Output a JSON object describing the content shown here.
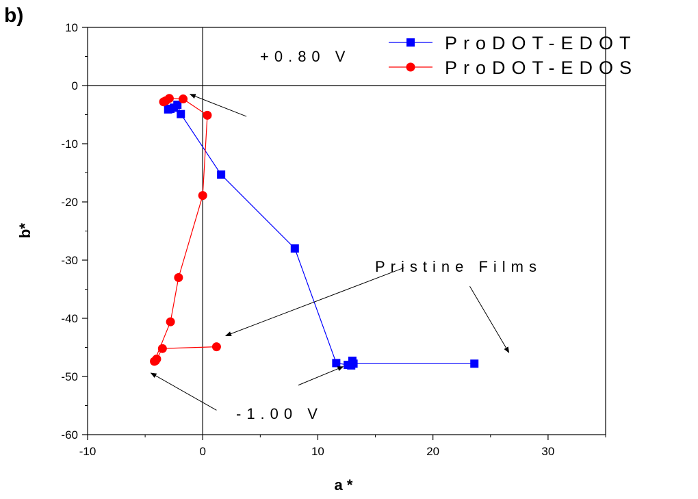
{
  "panel_label": "b)",
  "chart_data": {
    "type": "scatter",
    "xlabel": "a *",
    "ylabel": "b*",
    "xlim": [
      -10,
      35
    ],
    "ylim": [
      -60,
      10
    ],
    "x_ticks": [
      -10,
      0,
      10,
      20,
      30
    ],
    "y_ticks": [
      10,
      0,
      -10,
      -20,
      -30,
      -40,
      -50,
      -60
    ],
    "grid": false,
    "legend_position": "top-right",
    "zero_lines": true,
    "series": [
      {
        "name": "ProDOT-EDOT",
        "color": "#0000ff",
        "marker": "square",
        "x": [
          23.6,
          13.1,
          12.9,
          13.0,
          12.6,
          11.6,
          8.0,
          1.6,
          -1.9,
          -2.2,
          -2.5,
          -2.8,
          -3.0
        ],
        "y": [
          -47.8,
          -47.8,
          -48.1,
          -47.3,
          -48.0,
          -47.7,
          -28.0,
          -15.3,
          -4.9,
          -3.3,
          -3.8,
          -4.0,
          -4.1
        ]
      },
      {
        "name": "ProDOT-EDOS",
        "color": "#ff0000",
        "marker": "circle",
        "x": [
          1.2,
          -3.5,
          -4.0,
          -4.1,
          -4.2,
          -2.8,
          -2.1,
          0.0,
          0.4,
          -1.7,
          -2.9,
          -3.2,
          -3.4
        ],
        "y": [
          -44.9,
          -45.2,
          -47.0,
          -47.3,
          -47.4,
          -40.6,
          -33.0,
          -18.9,
          -5.1,
          -2.3,
          -2.2,
          -2.6,
          -2.8
        ]
      }
    ],
    "annotations": [
      {
        "text": "+0.80 V",
        "arrows": [
          {
            "from": [
              3.8,
              -5.3
            ],
            "to": [
              -1.1,
              -1.5
            ]
          }
        ]
      },
      {
        "text": "Pristine Films",
        "arrows": [
          {
            "from": [
              17.5,
              -31.3
            ],
            "to": [
              2.0,
              -43.0
            ]
          },
          {
            "from": [
              23.2,
              -34.5
            ],
            "to": [
              26.6,
              -45.9
            ]
          }
        ]
      },
      {
        "text": "-1.00 V",
        "arrows": [
          {
            "from": [
              1.2,
              -55.8
            ],
            "to": [
              -4.5,
              -49.4
            ]
          },
          {
            "from": [
              8.3,
              -51.5
            ],
            "to": [
              12.2,
              -48.3
            ]
          }
        ]
      }
    ]
  }
}
